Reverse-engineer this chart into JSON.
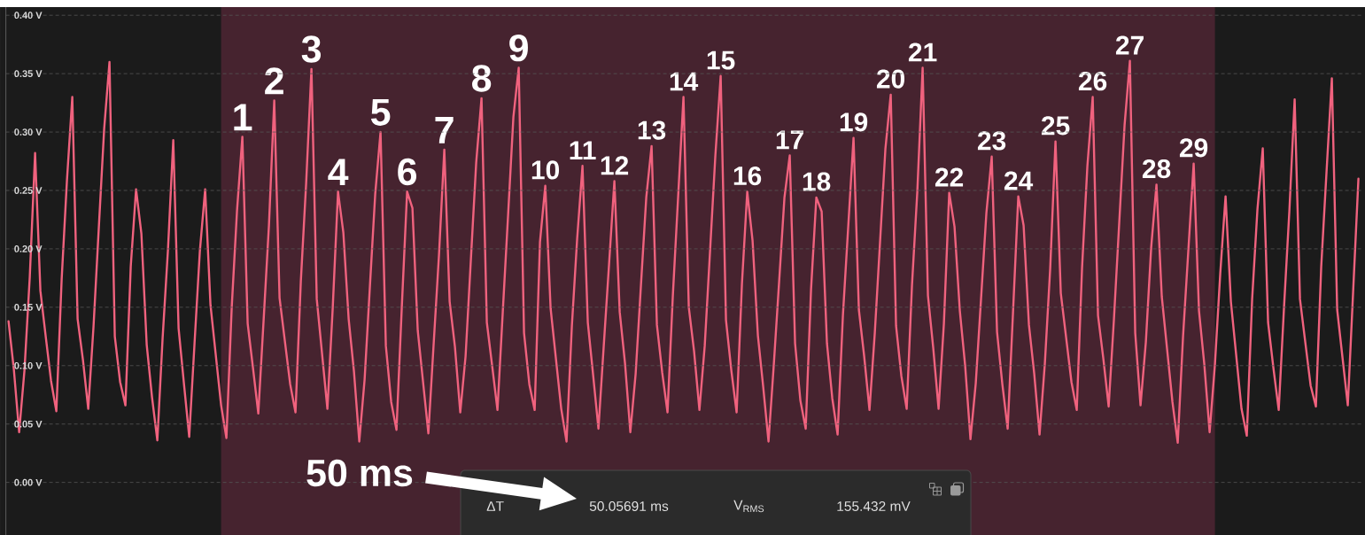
{
  "chart_data": {
    "type": "line",
    "categories": [
      null,
      null,
      null,
      null,
      null,
      null,
      null,
      null,
      null,
      null,
      null,
      null,
      null,
      null,
      null,
      null,
      null,
      null,
      null,
      null,
      null,
      null,
      null,
      null,
      null,
      null,
      null,
      null,
      null,
      null,
      null,
      null,
      null,
      null,
      null,
      null,
      null,
      null,
      null,
      null,
      null,
      null,
      null,
      null,
      null,
      null,
      null,
      null,
      null,
      null,
      null,
      null,
      null,
      null,
      null,
      null,
      null,
      null,
      null,
      null,
      null,
      null,
      null,
      null,
      null,
      null,
      null,
      null,
      null,
      null,
      null,
      null,
      null,
      null,
      null,
      null,
      null,
      null,
      null,
      null,
      null,
      null,
      null,
      null,
      null,
      null,
      null,
      null,
      null,
      null,
      null,
      null,
      null,
      null,
      null,
      null,
      null,
      null,
      null,
      null,
      null,
      null,
      null,
      null,
      null,
      null,
      null,
      null,
      null,
      null,
      null,
      null,
      null,
      null,
      null,
      null,
      null,
      null,
      null,
      null,
      null,
      null,
      null,
      null,
      null,
      null,
      null,
      null,
      null,
      null,
      null,
      null,
      null,
      null,
      null,
      null,
      null,
      null,
      null,
      null,
      null,
      null,
      null,
      null,
      null,
      null,
      null,
      null,
      null,
      null,
      null,
      null,
      null,
      null,
      null,
      null,
      null,
      null,
      null,
      null,
      null,
      null,
      null,
      null,
      null,
      null,
      null,
      null,
      null,
      null,
      null,
      null,
      null,
      null,
      null,
      null,
      null,
      null,
      null,
      null,
      null,
      null,
      null,
      null,
      null,
      null,
      null,
      null,
      null,
      null,
      null,
      null,
      null,
      null,
      null,
      null,
      null,
      null,
      null,
      null,
      null,
      null,
      null,
      null,
      null,
      null,
      null,
      null,
      null,
      null,
      null,
      null,
      null,
      null,
      null,
      null,
      null,
      null,
      null,
      null,
      null,
      null,
      null,
      null,
      null,
      null,
      null,
      null,
      null,
      null,
      null,
      null,
      null,
      null,
      null,
      null,
      null,
      null,
      null,
      null,
      null,
      null,
      null,
      null,
      null,
      null,
      null,
      null,
      null,
      null,
      null,
      null,
      null,
      null,
      null
    ],
    "series": [
      {
        "color": "#f0627e",
        "values": [
          0.138,
          0.097,
          0.043,
          0.096,
          0.176,
          0.282,
          0.164,
          0.125,
          0.087,
          0.061,
          0.174,
          0.259,
          0.33,
          0.14,
          0.105,
          0.063,
          0.134,
          0.219,
          0.303,
          0.36,
          0.125,
          0.086,
          0.066,
          0.185,
          0.251,
          0.213,
          0.118,
          0.073,
          0.036,
          0.124,
          0.199,
          0.293,
          0.132,
          0.085,
          0.039,
          0.119,
          0.198,
          0.251,
          0.152,
          0.109,
          0.066,
          0.038,
          0.15,
          0.233,
          0.296,
          0.136,
          0.098,
          0.059,
          0.139,
          0.22,
          0.327,
          0.158,
          0.121,
          0.084,
          0.06,
          0.172,
          0.256,
          0.354,
          0.157,
          0.11,
          0.063,
          0.149,
          0.249,
          0.214,
          0.14,
          0.095,
          0.035,
          0.088,
          0.168,
          0.247,
          0.3,
          0.117,
          0.069,
          0.045,
          0.15,
          0.249,
          0.235,
          0.13,
          0.086,
          0.042,
          0.119,
          0.195,
          0.285,
          0.155,
          0.116,
          0.06,
          0.108,
          0.191,
          0.274,
          0.329,
          0.137,
          0.1,
          0.062,
          0.146,
          0.229,
          0.313,
          0.355,
          0.128,
          0.084,
          0.062,
          0.206,
          0.254,
          0.149,
          0.106,
          0.063,
          0.035,
          0.134,
          0.209,
          0.271,
          0.137,
          0.092,
          0.046,
          0.117,
          0.187,
          0.258,
          0.146,
          0.102,
          0.043,
          0.093,
          0.169,
          0.244,
          0.288,
          0.135,
          0.094,
          0.06,
          0.16,
          0.245,
          0.33,
          0.15,
          0.112,
          0.062,
          0.117,
          0.198,
          0.28,
          0.348,
          0.139,
          0.096,
          0.06,
          0.17,
          0.249,
          0.207,
          0.126,
          0.082,
          0.035,
          0.101,
          0.172,
          0.244,
          0.28,
          0.119,
          0.07,
          0.046,
          0.165,
          0.244,
          0.232,
          0.119,
          0.072,
          0.041,
          0.143,
          0.219,
          0.295,
          0.148,
          0.108,
          0.062,
          0.128,
          0.207,
          0.286,
          0.332,
          0.134,
          0.091,
          0.063,
          0.169,
          0.249,
          0.355,
          0.16,
          0.115,
          0.063,
          0.136,
          0.248,
          0.219,
          0.147,
          0.1,
          0.037,
          0.085,
          0.158,
          0.231,
          0.279,
          0.129,
          0.084,
          0.046,
          0.145,
          0.245,
          0.22,
          0.135,
          0.093,
          0.041,
          0.102,
          0.183,
          0.292,
          0.162,
          0.124,
          0.086,
          0.062,
          0.184,
          0.271,
          0.33,
          0.143,
          0.106,
          0.065,
          0.14,
          0.223,
          0.306,
          0.361,
          0.128,
          0.066,
          0.12,
          0.201,
          0.255,
          0.159,
          0.114,
          0.069,
          0.034,
          0.125,
          0.199,
          0.273,
          0.147,
          0.101,
          0.043,
          0.101,
          0.179,
          0.245,
          0.155,
          0.109,
          0.063,
          0.04,
          0.157,
          0.234,
          0.286,
          0.137,
          0.098,
          0.062,
          0.15,
          0.232,
          0.328,
          0.157,
          0.12,
          0.083,
          0.065,
          0.185,
          0.266,
          0.346,
          0.148,
          0.107,
          0.066,
          0.163,
          0.26
        ]
      }
    ],
    "ylim": [
      -0.045,
      0.407
    ],
    "yticks": [
      {
        "value": 0,
        "label": "0.00 V"
      },
      {
        "value": 0.05,
        "label": "0.05 V"
      },
      {
        "value": 0.1,
        "label": "0.10 V"
      },
      {
        "value": 0.15,
        "label": "0.15 V"
      },
      {
        "value": 0.2,
        "label": "0.20 V"
      },
      {
        "value": 0.25,
        "label": "0.25 V"
      },
      {
        "value": 0.3,
        "label": "0.30 V"
      },
      {
        "value": 0.35,
        "label": "0.35 V"
      },
      {
        "value": 0.4,
        "label": "0.40 V"
      }
    ],
    "grid": "y",
    "tick_labels": "y",
    "annotations": [
      {
        "text": "1",
        "y": 0.296
      },
      {
        "text": "2",
        "y": 0.327
      },
      {
        "text": "3",
        "y": 0.354
      },
      {
        "text": "4",
        "y": 0.249
      },
      {
        "text": "5",
        "y": 0.3
      },
      {
        "text": "6",
        "y": 0.249
      },
      {
        "text": "7",
        "y": 0.285
      },
      {
        "text": "8",
        "y": 0.329
      },
      {
        "text": "9",
        "y": 0.355
      },
      {
        "text": "10",
        "y": 0.254
      },
      {
        "text": "11",
        "y": 0.271
      },
      {
        "text": "12",
        "y": 0.258
      },
      {
        "text": "13",
        "y": 0.288
      },
      {
        "text": "14",
        "y": 0.33
      },
      {
        "text": "15",
        "y": 0.348
      },
      {
        "text": "16",
        "y": 0.249
      },
      {
        "text": "17",
        "y": 0.28
      },
      {
        "text": "18",
        "y": 0.244
      },
      {
        "text": "19",
        "y": 0.295
      },
      {
        "text": "20",
        "y": 0.332
      },
      {
        "text": "21",
        "y": 0.355
      },
      {
        "text": "22",
        "y": 0.248
      },
      {
        "text": "23",
        "y": 0.279
      },
      {
        "text": "24",
        "y": 0.245
      },
      {
        "text": "25",
        "y": 0.292
      },
      {
        "text": "26",
        "y": 0.33
      },
      {
        "text": "27",
        "y": 0.361
      },
      {
        "text": "28",
        "y": 0.255
      },
      {
        "text": "29",
        "y": 0.273
      },
      "50 ms",
      "ΔT",
      "50.05691 ms",
      "V$_{RMS}$",
      "155.432 mV"
    ]
  }
}
